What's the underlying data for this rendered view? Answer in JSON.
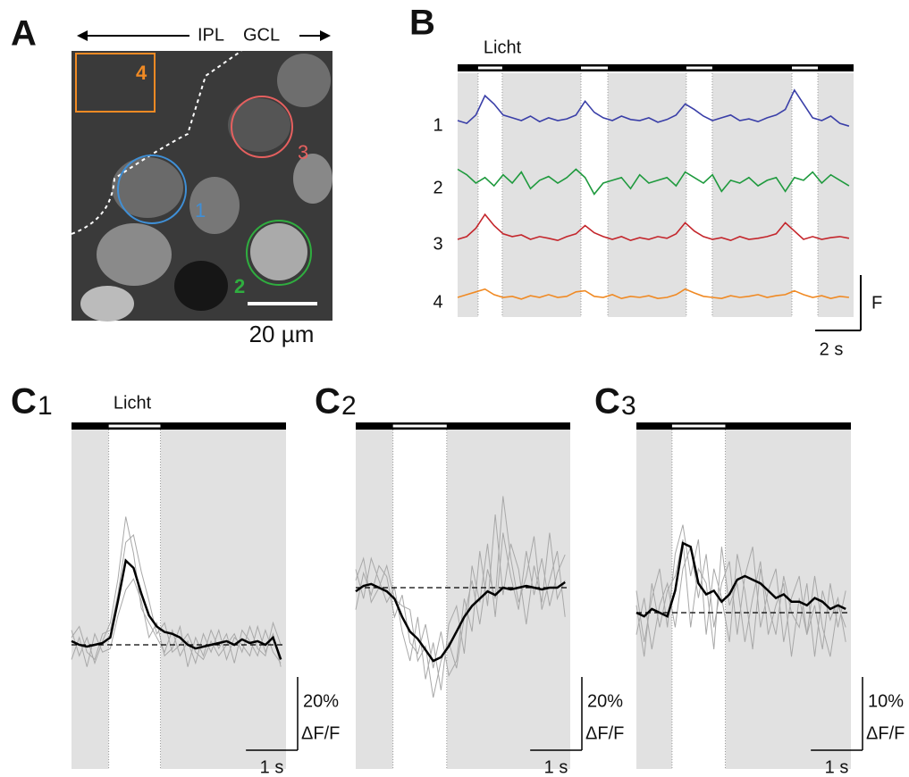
{
  "panel_a": {
    "label": "A",
    "regions": [
      "IPL",
      "GCL"
    ],
    "rois": [
      "1",
      "2",
      "3",
      "4"
    ],
    "scale_bar": {
      "value": 20,
      "label": "20 µm"
    }
  },
  "panel_b": {
    "label": "B",
    "stimulus_label": "Licht",
    "xlim": [
      0,
      17.4
    ],
    "light_on": [
      [
        0.9,
        1.96
      ],
      [
        5.42,
        6.6
      ],
      [
        10.05,
        11.19
      ],
      [
        14.69,
        15.83
      ]
    ],
    "x": [
      0,
      0.4,
      0.8,
      1.2,
      1.6,
      2,
      2.4,
      2.8,
      3.2,
      3.6,
      4,
      4.4,
      4.8,
      5.2,
      5.6,
      6,
      6.4,
      6.8,
      7.2,
      7.6,
      8,
      8.4,
      8.8,
      9.2,
      9.6,
      10,
      10.4,
      10.8,
      11.2,
      11.6,
      12,
      12.4,
      12.8,
      13.2,
      13.6,
      14,
      14.4,
      14.8,
      15.2,
      15.6,
      16,
      16.4,
      16.8,
      17.2
    ],
    "series": [
      {
        "name": "1",
        "color": "#3a3fa8",
        "values": [
          0,
          -0.05,
          0.1,
          0.45,
          0.3,
          0.1,
          0.05,
          0,
          0.08,
          -0.02,
          0.05,
          0,
          0.03,
          0.1,
          0.35,
          0.15,
          0.05,
          0,
          0.08,
          0.02,
          0,
          0.05,
          -0.03,
          0.02,
          0.1,
          0.3,
          0.2,
          0.08,
          0,
          0.05,
          0.1,
          0,
          0.03,
          -0.02,
          0.05,
          0.1,
          0.2,
          0.55,
          0.3,
          0.05,
          0,
          0.08,
          -0.05,
          -0.1
        ]
      },
      {
        "name": "2",
        "color": "#1f9a3e",
        "values": [
          0.25,
          0.15,
          0,
          0.1,
          -0.05,
          0.15,
          0,
          0.2,
          -0.1,
          0.05,
          0.12,
          0,
          0.1,
          0.25,
          0.1,
          -0.2,
          0,
          0.05,
          0.1,
          -0.1,
          0.15,
          0,
          0.05,
          0.1,
          -0.05,
          0.2,
          0.1,
          0,
          0.15,
          -0.15,
          0.05,
          0,
          0.1,
          -0.05,
          0.05,
          0.1,
          -0.15,
          0.1,
          0.05,
          0.2,
          0,
          0.15,
          0.05,
          -0.05
        ]
      },
      {
        "name": "3",
        "color": "#c4262c",
        "values": [
          0,
          0.05,
          0.2,
          0.45,
          0.25,
          0.1,
          0.05,
          0.08,
          0,
          0.05,
          0.02,
          -0.02,
          0.05,
          0.1,
          0.25,
          0.12,
          0.05,
          0,
          0.05,
          -0.02,
          0.03,
          0,
          0.05,
          0.02,
          0.1,
          0.3,
          0.15,
          0.05,
          0,
          0.03,
          -0.02,
          0.05,
          0,
          0.02,
          0.05,
          0.1,
          0.3,
          0.15,
          0,
          0.05,
          0,
          0.03,
          0.05,
          0.02
        ]
      },
      {
        "name": "4",
        "color": "#f08a24",
        "values": [
          0,
          0.05,
          0.1,
          0.15,
          0.05,
          0,
          0.02,
          -0.03,
          0.03,
          0,
          0.05,
          0,
          0.02,
          0.1,
          0.12,
          0.02,
          0,
          0.05,
          -0.02,
          0.02,
          0,
          0.03,
          -0.02,
          0,
          0.05,
          0.15,
          0.08,
          0.02,
          0,
          -0.02,
          0.03,
          0,
          0.02,
          0.05,
          0,
          0.03,
          0.05,
          0.12,
          0.05,
          0,
          0.03,
          -0.02,
          0.02,
          0
        ]
      }
    ],
    "scale_x": {
      "value": 2,
      "label": "2 s"
    },
    "scale_y": {
      "value": 1,
      "label": "F"
    }
  },
  "panels_c": [
    {
      "label": "C",
      "index": "1",
      "stimulus_label": "Licht",
      "xlim": [
        0,
        4.15
      ],
      "light_on": [
        0.72,
        1.72
      ],
      "x": [
        0,
        0.15,
        0.3,
        0.45,
        0.6,
        0.75,
        0.9,
        1.05,
        1.2,
        1.35,
        1.5,
        1.65,
        1.8,
        1.95,
        2.1,
        2.25,
        2.4,
        2.55,
        2.7,
        2.85,
        3,
        3.15,
        3.3,
        3.45,
        3.6,
        3.75,
        3.9,
        4.05
      ],
      "trials": [
        [
          4,
          -3,
          2,
          -5,
          1,
          6,
          18,
          35,
          25,
          10,
          6,
          2,
          -2,
          4,
          -3,
          1,
          -5,
          3,
          -2,
          4,
          -4,
          2,
          0,
          -3,
          5,
          -2,
          3,
          -6
        ],
        [
          -4,
          2,
          -6,
          3,
          -2,
          -1,
          8,
          15,
          18,
          12,
          2,
          6,
          -3,
          -1,
          5,
          -6,
          2,
          -3,
          4,
          -1,
          3,
          -5,
          4,
          1,
          -3,
          4,
          -2,
          -5
        ],
        [
          2,
          5,
          -2,
          -4,
          3,
          4,
          14,
          28,
          30,
          20,
          12,
          3,
          6,
          -2,
          0,
          3,
          -2,
          -4,
          1,
          -3,
          0,
          3,
          -2,
          5,
          -1,
          -3,
          6,
          0
        ]
      ],
      "mean": [
        1,
        0,
        -0.5,
        0,
        0.5,
        2,
        12,
        23,
        21,
        14,
        8,
        5,
        3.5,
        3,
        2,
        0,
        -1,
        -0.5,
        0,
        0.5,
        1,
        0,
        1.5,
        0.5,
        1,
        0,
        2,
        -4
      ],
      "scale_x": {
        "value": 1,
        "label": "1 s"
      },
      "scale_y": {
        "value": 20,
        "label": "20%"
      },
      "scale_y_unit": "ΔF/F"
    },
    {
      "label": "C",
      "index": "2",
      "xlim": [
        0,
        4.15
      ],
      "light_on": [
        0.72,
        1.76
      ],
      "x": [
        0,
        0.15,
        0.3,
        0.45,
        0.6,
        0.75,
        0.9,
        1.05,
        1.2,
        1.35,
        1.5,
        1.65,
        1.8,
        1.95,
        2.1,
        2.25,
        2.4,
        2.55,
        2.7,
        2.85,
        3,
        3.15,
        3.3,
        3.45,
        3.6,
        3.75,
        3.9,
        4.05
      ],
      "trials": [
        [
          5,
          -3,
          8,
          2,
          -4,
          0,
          -12,
          -20,
          -8,
          -25,
          -15,
          -28,
          -10,
          -5,
          -18,
          6,
          -4,
          12,
          -8,
          15,
          3,
          -6,
          10,
          -2,
          8,
          -5,
          4,
          9
        ],
        [
          -6,
          4,
          -2,
          6,
          3,
          -8,
          -2,
          -15,
          -18,
          -10,
          -22,
          -12,
          -24,
          -20,
          -3,
          -12,
          10,
          -5,
          20,
          -2,
          12,
          5,
          -10,
          6,
          -4,
          15,
          -3,
          2
        ],
        [
          2,
          8,
          -4,
          0,
          6,
          -3,
          -5,
          -6,
          -20,
          -16,
          -30,
          -20,
          -15,
          -22,
          -8,
          2,
          -10,
          5,
          -3,
          25,
          8,
          -4,
          3,
          14,
          -6,
          2,
          10,
          -8
        ]
      ],
      "mean": [
        -1,
        0.5,
        1,
        0,
        -1,
        -3,
        -8,
        -12,
        -14,
        -17,
        -20,
        -19,
        -16,
        -12,
        -8,
        -5,
        -3,
        -1,
        -2,
        0,
        -0.5,
        0,
        0.5,
        0,
        -0.5,
        0,
        0,
        1.5
      ],
      "scale_x": {
        "value": 1,
        "label": "1 s"
      },
      "scale_y": {
        "value": 20,
        "label": "20%"
      },
      "scale_y_unit": "ΔF/F"
    },
    {
      "label": "C",
      "index": "3",
      "xlim": [
        0,
        4.15
      ],
      "light_on": [
        0.69,
        1.72
      ],
      "x": [
        0,
        0.15,
        0.3,
        0.45,
        0.6,
        0.75,
        0.9,
        1.05,
        1.2,
        1.35,
        1.5,
        1.65,
        1.8,
        1.95,
        2.1,
        2.25,
        2.4,
        2.55,
        2.7,
        2.85,
        3,
        3.15,
        3.3,
        3.45,
        3.6,
        3.75,
        3.9,
        4.05
      ],
      "trials": [
        [
          3,
          -4,
          2,
          6,
          -2,
          8,
          12,
          5,
          10,
          -3,
          6,
          2,
          -4,
          8,
          3,
          -5,
          6,
          1,
          -3,
          5,
          0,
          -2,
          4,
          -6,
          3,
          -1,
          2,
          -4
        ],
        [
          -3,
          2,
          -5,
          1,
          4,
          -2,
          6,
          9,
          2,
          8,
          -2,
          4,
          7,
          -3,
          5,
          9,
          -2,
          3,
          6,
          -4,
          2,
          5,
          -3,
          1,
          -5,
          4,
          -2,
          3
        ],
        [
          1,
          -6,
          4,
          -2,
          3,
          5,
          10,
          -2,
          6,
          4,
          -5,
          9,
          1,
          4,
          -4,
          2,
          7,
          -3,
          1,
          4,
          -6,
          2,
          -3,
          5,
          -2,
          -6,
          1,
          -2
        ]
      ],
      "mean": [
        0,
        -0.5,
        0.5,
        0,
        -0.5,
        3,
        9.5,
        9,
        4,
        2.5,
        3,
        1.5,
        2.5,
        4.5,
        5,
        4.5,
        4,
        3,
        2,
        2.5,
        1.5,
        1.5,
        1,
        2,
        1.5,
        0.5,
        1,
        0.5
      ],
      "scale_x": {
        "value": 1,
        "label": "1 s"
      },
      "scale_y": {
        "value": 10,
        "label": "10%"
      },
      "scale_y_unit": "ΔF/F"
    }
  ]
}
